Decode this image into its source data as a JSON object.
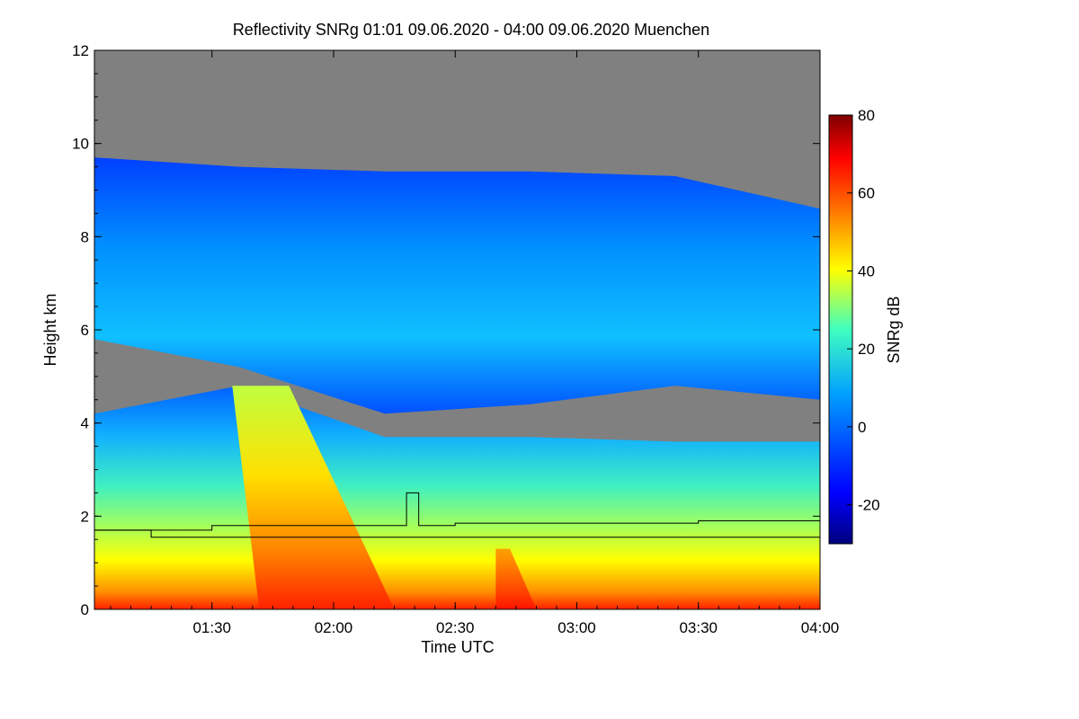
{
  "chart_data": {
    "type": "heatmap",
    "title": "Reflectivity SNRg   01:01 09.06.2020 - 04:00 09.06.2020 Muenchen",
    "xlabel": "Time UTC",
    "ylabel": "Height km",
    "x_range_minutes_utc": [
      "01:01",
      "04:00"
    ],
    "x_ticks": [
      "01:30",
      "02:00",
      "02:30",
      "03:00",
      "03:30",
      "04:00"
    ],
    "y_ticks": [
      "0",
      "2",
      "4",
      "6",
      "8",
      "10",
      "12"
    ],
    "ylim": [
      0,
      12
    ],
    "colorbar": {
      "label": "SNRg dB",
      "range": [
        -30,
        80
      ],
      "ticks": [
        "-20",
        "0",
        "20",
        "40",
        "60",
        "80"
      ],
      "tick_values": [
        -20,
        0,
        20,
        40,
        60,
        80
      ],
      "colormap": "jet"
    },
    "no_signal_color": "#808080",
    "layers": [
      {
        "name": "upper cloud layer",
        "time_start": "01:01",
        "time_end": "04:00",
        "top_km": [
          9.7,
          9.5,
          9.4,
          9.4,
          9.3,
          8.6
        ],
        "base_km": [
          5.8,
          5.2,
          4.2,
          4.4,
          4.8,
          4.5
        ],
        "typical_snr_db": 0
      },
      {
        "name": "lower precipitation layer",
        "time_start": "01:01",
        "time_end": "04:00",
        "top_km": [
          4.2,
          4.8,
          3.7,
          3.7,
          3.6,
          3.6
        ],
        "base_km": [
          0,
          0,
          0,
          0,
          0,
          0
        ],
        "typical_snr_db": 30
      },
      {
        "name": "fall streak",
        "time_start": "01:35",
        "time_end": "02:15",
        "top_km": 4.8,
        "base_km": 0,
        "typical_snr_db": 45
      },
      {
        "name": "near-ground core",
        "time_start": "02:40",
        "time_end": "02:50",
        "top_km": 1.3,
        "base_km": 0,
        "typical_snr_db": 60
      }
    ],
    "lines": [
      {
        "name": "upper line",
        "times": [
          "01:01",
          "01:30",
          "02:15",
          "02:18",
          "02:21",
          "02:30",
          "03:00",
          "03:30",
          "04:00"
        ],
        "height_km": [
          1.7,
          1.8,
          1.8,
          2.5,
          1.8,
          1.85,
          1.85,
          1.9,
          1.9
        ]
      },
      {
        "name": "lower line",
        "times": [
          "01:01",
          "01:15",
          "04:00"
        ],
        "height_km": [
          1.7,
          1.55,
          1.55
        ]
      }
    ]
  }
}
